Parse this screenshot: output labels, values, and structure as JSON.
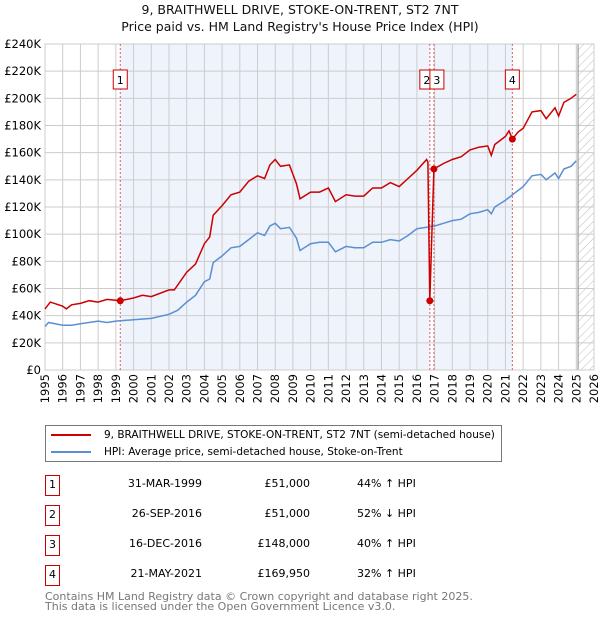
{
  "title_line1": "9, BRAITHWELL DRIVE, STOKE-ON-TRENT, ST2 7NT",
  "title_line2": "Price paid vs. HM Land Registry's House Price Index (HPI)",
  "colors": {
    "price": "#cc0000",
    "hpi": "#5b8fd4",
    "shade": "#eef3fc"
  },
  "chart_data": {
    "type": "line",
    "title": "Price paid vs. HM Land Registry's House Price Index (HPI)",
    "xlim": [
      1995,
      2026
    ],
    "ylim": [
      0,
      240000
    ],
    "y_ticks": [
      0,
      20000,
      40000,
      60000,
      80000,
      100000,
      120000,
      140000,
      160000,
      180000,
      200000,
      220000,
      240000
    ],
    "y_tick_labels": [
      "£0",
      "£20K",
      "£40K",
      "£60K",
      "£80K",
      "£100K",
      "£120K",
      "£140K",
      "£160K",
      "£180K",
      "£200K",
      "£220K",
      "£240K"
    ],
    "x_ticks": [
      1995,
      1996,
      1997,
      1998,
      1999,
      2000,
      2001,
      2002,
      2003,
      2004,
      2005,
      2006,
      2007,
      2008,
      2009,
      2010,
      2011,
      2012,
      2013,
      2014,
      2015,
      2016,
      2017,
      2018,
      2019,
      2020,
      2021,
      2022,
      2023,
      2024,
      2025,
      2026
    ],
    "grid": true,
    "forecast_from": 2025.1,
    "series": [
      {
        "name": "9, BRAITHWELL DRIVE, STOKE-ON-TRENT, ST2 7NT (semi-detached house)",
        "color": "#cc0000",
        "x": [
          1995,
          1995.3,
          1996,
          1996.2,
          1996.5,
          1997,
          1997.5,
          1998,
          1998.5,
          1999.25,
          2000,
          2000.5,
          2001,
          2002,
          2002.3,
          2003,
          2003.5,
          2004,
          2004.3,
          2004.5,
          2005,
          2005.5,
          2006,
          2006.5,
          2007,
          2007.4,
          2007.7,
          2008,
          2008.3,
          2008.8,
          2009.2,
          2009.4,
          2010,
          2010.5,
          2011,
          2011.4,
          2012,
          2012.5,
          2013,
          2013.5,
          2014,
          2014.5,
          2015,
          2015.5,
          2016,
          2016.55,
          2016.62,
          2016.73,
          2016.96,
          2017.5,
          2018,
          2018.5,
          2019,
          2019.5,
          2020,
          2020.2,
          2020.4,
          2021,
          2021.2,
          2021.39,
          2021.7,
          2022,
          2022.5,
          2023,
          2023.3,
          2023.8,
          2024,
          2024.3,
          2024.7,
          2025
        ],
        "y": [
          45000,
          50000,
          47000,
          45000,
          48000,
          49000,
          51000,
          50000,
          52000,
          51000,
          53000,
          55000,
          54000,
          59000,
          59000,
          72000,
          78000,
          93000,
          98000,
          114000,
          121000,
          129000,
          131000,
          139000,
          143000,
          141000,
          151000,
          155000,
          150000,
          151000,
          137000,
          126000,
          131000,
          131000,
          134000,
          124000,
          129000,
          128000,
          128000,
          134000,
          134000,
          138000,
          135000,
          141000,
          147000,
          155000,
          153000,
          51000,
          148000,
          152000,
          155000,
          157000,
          162000,
          164000,
          165000,
          158000,
          166000,
          172000,
          176000,
          169950,
          175000,
          178000,
          190000,
          191000,
          185000,
          193000,
          187000,
          197000,
          200000,
          203000
        ]
      },
      {
        "name": "HPI: Average price, semi-detached house, Stoke-on-Trent",
        "color": "#5b8fd4",
        "x": [
          1995,
          1995.2,
          1996,
          1996.5,
          1997,
          1998,
          1998.5,
          1999,
          2000,
          2001,
          2002,
          2002.5,
          2003,
          2003.5,
          2004,
          2004.3,
          2004.5,
          2005,
          2005.5,
          2006,
          2006.5,
          2007,
          2007.4,
          2007.7,
          2008,
          2008.3,
          2008.8,
          2009.2,
          2009.4,
          2010,
          2010.5,
          2011,
          2011.4,
          2012,
          2012.5,
          2013,
          2013.5,
          2014,
          2014.5,
          2015,
          2015.5,
          2016,
          2016.5,
          2017,
          2017.5,
          2018,
          2018.5,
          2019,
          2019.5,
          2020,
          2020.2,
          2020.4,
          2021,
          2021.5,
          2022,
          2022.5,
          2023,
          2023.3,
          2023.8,
          2024,
          2024.3,
          2024.7,
          2025
        ],
        "y": [
          32000,
          35000,
          33000,
          33000,
          34000,
          36000,
          35000,
          36000,
          37000,
          38000,
          41000,
          44000,
          50000,
          55000,
          65000,
          67000,
          79000,
          84000,
          90000,
          91000,
          96000,
          101000,
          99000,
          106000,
          108000,
          104000,
          105000,
          97000,
          88000,
          93000,
          94000,
          94000,
          87000,
          91000,
          90000,
          90000,
          94000,
          94000,
          96000,
          95000,
          99000,
          104000,
          105000,
          106000,
          108000,
          110000,
          111000,
          115000,
          116000,
          118000,
          115000,
          120000,
          125000,
          130000,
          135000,
          143000,
          144000,
          140000,
          145000,
          141000,
          148000,
          150000,
          154000
        ]
      }
    ],
    "sales": [
      {
        "label": "1",
        "x": 1999.25,
        "price": 51000
      },
      {
        "label": "2",
        "x": 2016.73,
        "price": 51000
      },
      {
        "label": "3",
        "x": 2016.96,
        "price": 148000
      },
      {
        "label": "4",
        "x": 2021.39,
        "price": 169950
      }
    ]
  },
  "legend": {
    "price_label": "9, BRAITHWELL DRIVE, STOKE-ON-TRENT, ST2 7NT (semi-detached house)",
    "hpi_label": "HPI: Average price, semi-detached house, Stoke-on-Trent"
  },
  "table": [
    {
      "num": "1",
      "date": "31-MAR-1999",
      "price": "£51,000",
      "hpi": "44% ↑ HPI"
    },
    {
      "num": "2",
      "date": "26-SEP-2016",
      "price": "£51,000",
      "hpi": "52% ↓ HPI"
    },
    {
      "num": "3",
      "date": "16-DEC-2016",
      "price": "£148,000",
      "hpi": "40% ↑ HPI"
    },
    {
      "num": "4",
      "date": "21-MAY-2021",
      "price": "£169,950",
      "hpi": "32% ↑ HPI"
    }
  ],
  "footer_line1": "Contains HM Land Registry data © Crown copyright and database right 2025.",
  "footer_line2": "This data is licensed under the Open Government Licence v3.0."
}
